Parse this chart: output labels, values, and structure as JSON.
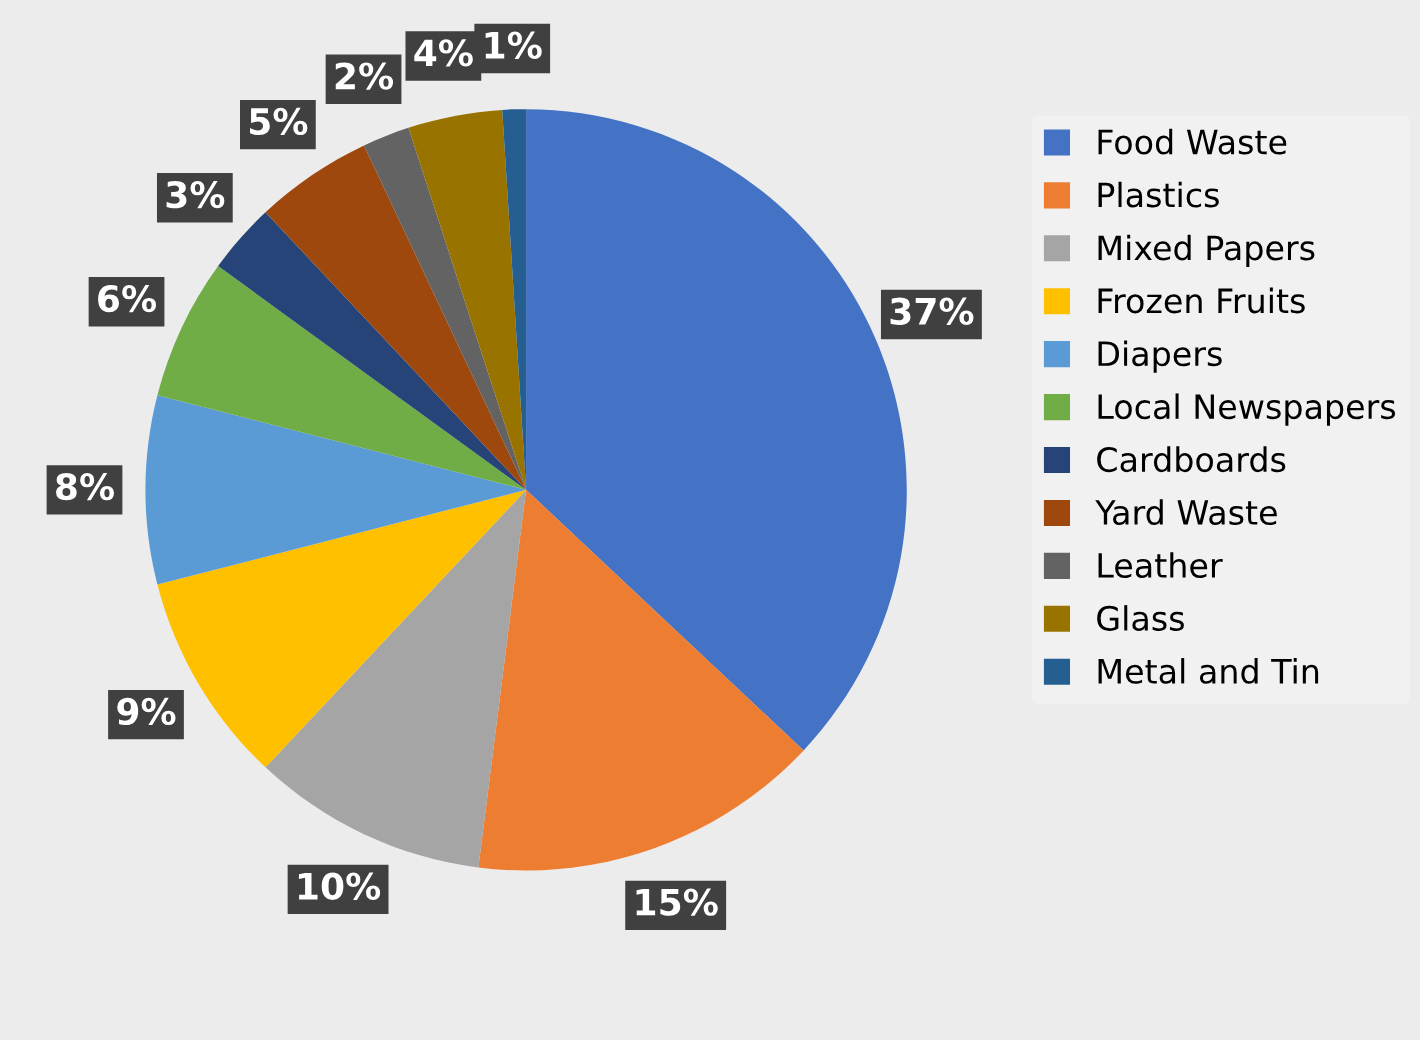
{
  "chart_data": {
    "type": "pie",
    "categories": [
      "Food Waste",
      "Plastics",
      "Mixed Papers",
      "Frozen Fruits",
      "Diapers",
      "Local Newspapers",
      "Cardboards",
      "Yard Waste",
      "Leather",
      "Glass",
      "Metal and Tin"
    ],
    "values": [
      37,
      15,
      10,
      9,
      8,
      6,
      3,
      5,
      2,
      4,
      1
    ],
    "colors": [
      "#4472c4",
      "#ed7d31",
      "#a5a5a5",
      "#ffc000",
      "#5b9bd5",
      "#70ad47",
      "#264478",
      "#9e480e",
      "#636363",
      "#997300",
      "#255e91"
    ],
    "value_labels": [
      "37%",
      "15%",
      "10%",
      "9%",
      "8%",
      "6%",
      "3%",
      "5%",
      "2%",
      "4%",
      "1%"
    ],
    "legend": "right"
  }
}
